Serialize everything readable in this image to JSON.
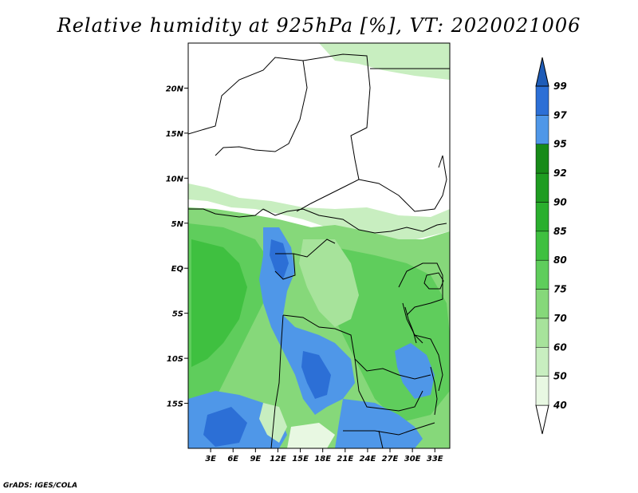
{
  "title": "Relative humidity at 925hPa [%], VT: 2020021006",
  "footer": "GrADS: IGES/COLA",
  "map": {
    "lon_range": [
      0,
      35
    ],
    "lat_range": [
      -20,
      25
    ],
    "lat_labels": [
      {
        "lat": 20,
        "text": "20N"
      },
      {
        "lat": 15,
        "text": "15N"
      },
      {
        "lat": 10,
        "text": "10N"
      },
      {
        "lat": 5,
        "text": "5N"
      },
      {
        "lat": 0,
        "text": "EQ"
      },
      {
        "lat": -5,
        "text": "5S"
      },
      {
        "lat": -10,
        "text": "10S"
      },
      {
        "lat": -15,
        "text": "15S"
      }
    ],
    "lon_labels": [
      {
        "lon": 3,
        "text": "3E"
      },
      {
        "lon": 6,
        "text": "6E"
      },
      {
        "lon": 9,
        "text": "9E"
      },
      {
        "lon": 12,
        "text": "12E"
      },
      {
        "lon": 15,
        "text": "15E"
      },
      {
        "lon": 18,
        "text": "18E"
      },
      {
        "lon": 21,
        "text": "21E"
      },
      {
        "lon": 24,
        "text": "24E"
      },
      {
        "lon": 27,
        "text": "27E"
      },
      {
        "lon": 30,
        "text": "30E"
      },
      {
        "lon": 33,
        "text": "33E"
      }
    ]
  },
  "colorbar": {
    "levels": [
      "40",
      "50",
      "60",
      "70",
      "75",
      "80",
      "85",
      "90",
      "92",
      "95",
      "97",
      "99"
    ],
    "colors": [
      "#ffffff",
      "#e8f8e2",
      "#c8eec0",
      "#a7e39b",
      "#86d87a",
      "#5fcd5c",
      "#3fc040",
      "#2aaf2e",
      "#1e9c21",
      "#178a18",
      "#4f97e8",
      "#2c6fd6",
      "#1e5cb8"
    ]
  }
}
